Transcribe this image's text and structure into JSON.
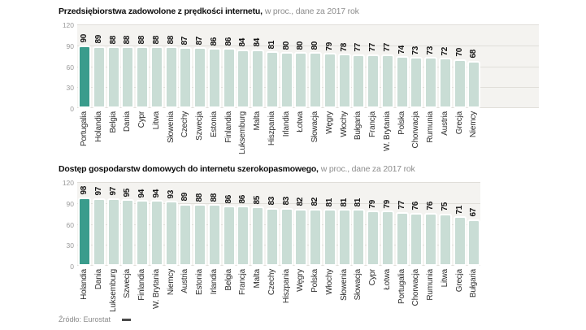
{
  "page": {
    "source_label": "Źródło: Eurostat"
  },
  "chart_data": [
    {
      "type": "bar",
      "title": "Przedsiębiorstwa zadowolone z prędkości internetu,",
      "subtitle": "w proc., dane za 2017 rok",
      "categories": [
        "Portugalia",
        "Holandia",
        "Belgia",
        "Dania",
        "Cypr",
        "Litwa",
        "Słowenia",
        "Czechy",
        "Szwecja",
        "Estonia",
        "Finlandia",
        "Luksemburg",
        "Malta",
        "Hiszpania",
        "Irlandia",
        "Łotwa",
        "Słowacja",
        "Węgry",
        "Włochy",
        "Bułgaria",
        "Francja",
        "W. Brytania",
        "Polska",
        "Chorwacja",
        "Rumunia",
        "Austria",
        "Grecja",
        "Niemcy"
      ],
      "values": [
        90,
        89,
        88,
        88,
        88,
        88,
        88,
        87,
        87,
        86,
        86,
        84,
        84,
        81,
        80,
        80,
        80,
        79,
        78,
        77,
        77,
        77,
        74,
        73,
        73,
        72,
        70,
        68
      ],
      "ylim": [
        0,
        120
      ],
      "yticks": [
        0,
        30,
        60,
        90,
        120
      ],
      "grid": true,
      "data_labels": true,
      "label_rotation": -90,
      "highlight_index": 0,
      "colors": {
        "bar": "#c9ddd5",
        "highlight": "#3a9c8c",
        "plot_bg": "#f4f3f0",
        "grid": "#e0ded9"
      }
    },
    {
      "type": "bar",
      "title": "Dostęp gospodarstw domowych do internetu szerokopasmowego,",
      "subtitle": "w proc., dane za 2017 rok",
      "categories": [
        "Holandia",
        "Dania",
        "Luksemburg",
        "Szwecja",
        "Finlandia",
        "W. Brytania",
        "Niemcy",
        "Austria",
        "Estonia",
        "Irlandia",
        "Belgia",
        "Francja",
        "Malta",
        "Czechy",
        "Hiszpania",
        "Węgry",
        "Polska",
        "Włochy",
        "Słowenia",
        "Słowacja",
        "Cypr",
        "Łotwa",
        "Portugalia",
        "Chorwacja",
        "Rumunia",
        "Litwa",
        "Grecja",
        "Bułgaria"
      ],
      "values": [
        98,
        97,
        97,
        95,
        94,
        94,
        93,
        89,
        88,
        88,
        86,
        86,
        85,
        83,
        83,
        82,
        82,
        81,
        81,
        81,
        79,
        79,
        77,
        76,
        76,
        75,
        71,
        67
      ],
      "ylim": [
        0,
        120
      ],
      "yticks": [
        0,
        30,
        60,
        90,
        120
      ],
      "grid": true,
      "data_labels": true,
      "label_rotation": -90,
      "highlight_index": 0,
      "colors": {
        "bar": "#c9ddd5",
        "highlight": "#3a9c8c",
        "plot_bg": "#f4f3f0",
        "grid": "#e0ded9"
      }
    }
  ]
}
